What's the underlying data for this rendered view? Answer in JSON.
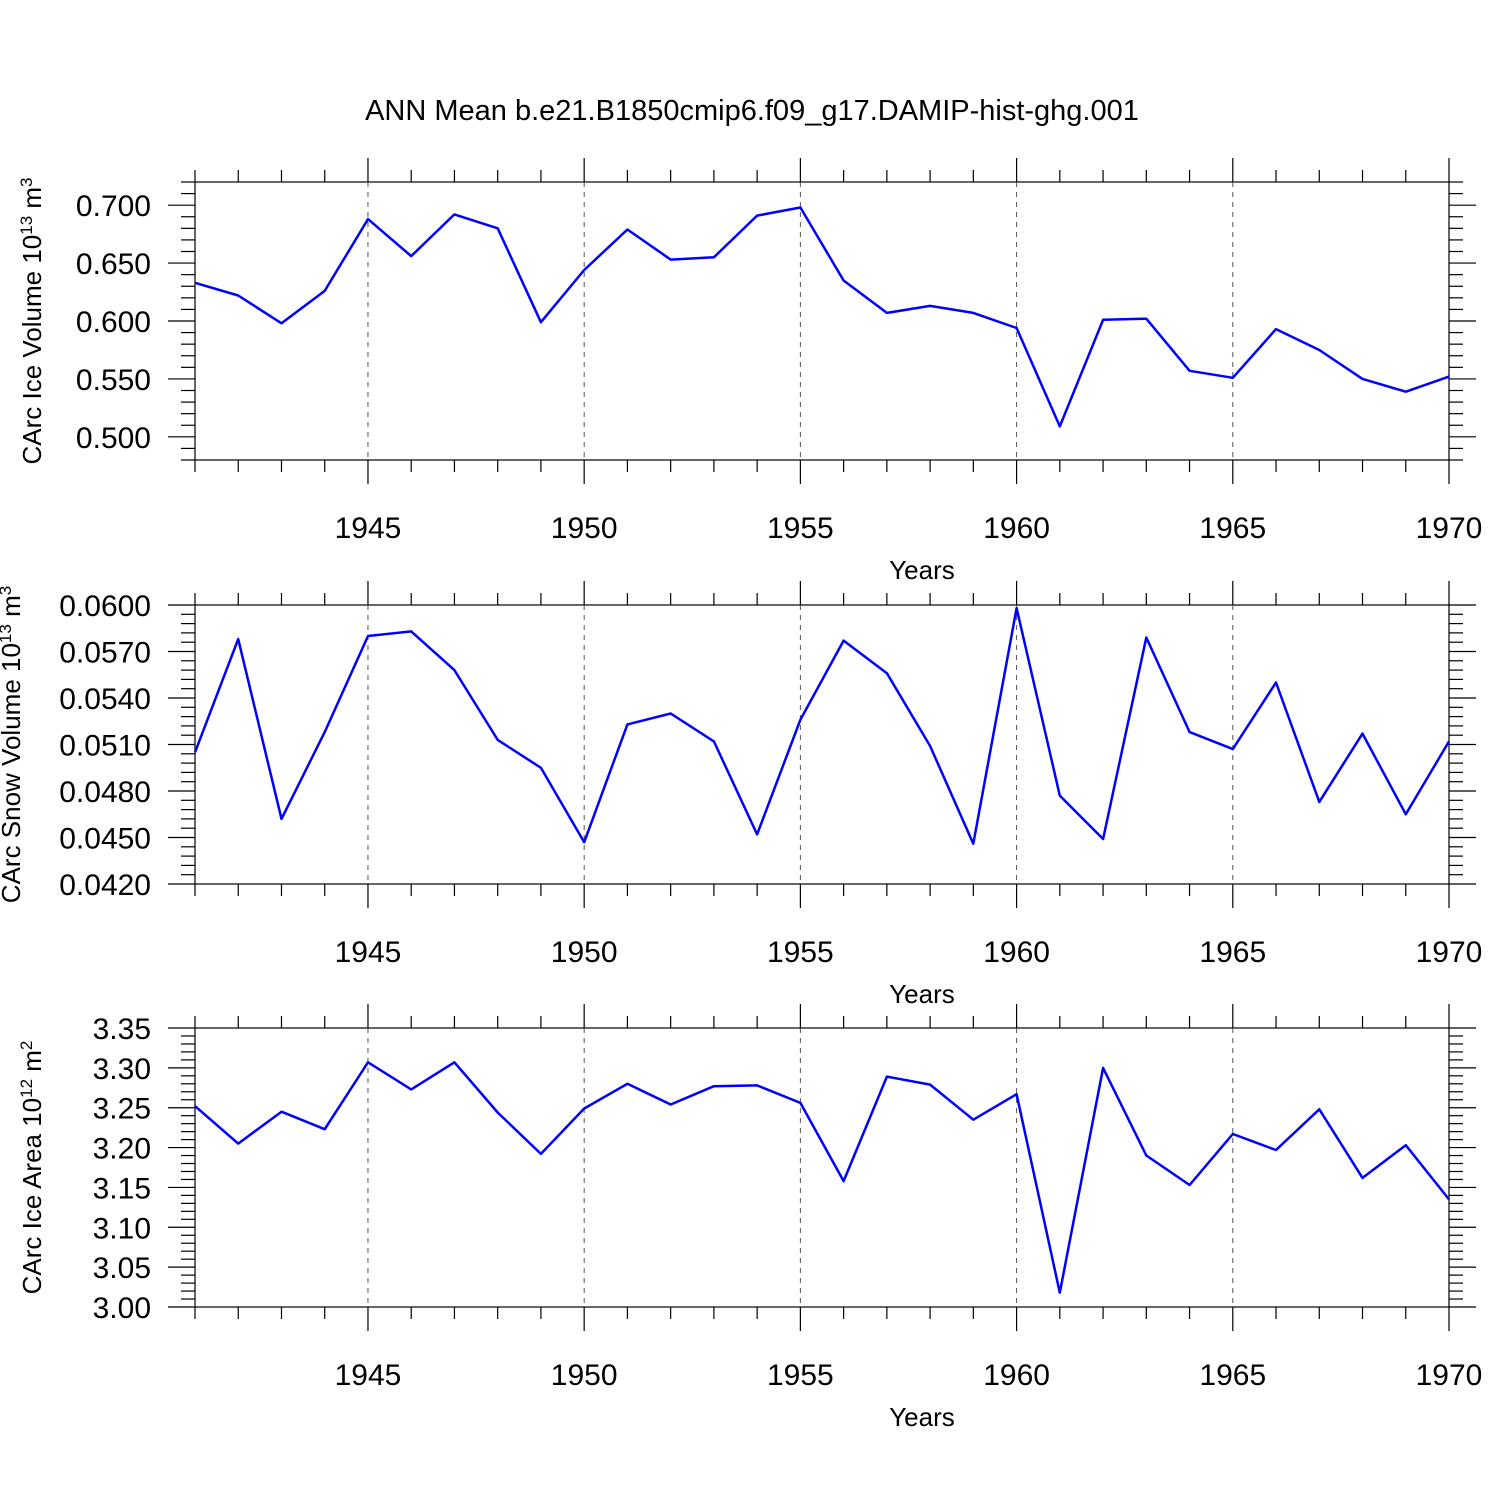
{
  "chart_data": {
    "type": "line",
    "title": "ANN Mean b.e21.B1850cmip6.f09_g17.DAMIP-hist-ghg.001",
    "x": [
      1941,
      1942,
      1943,
      1944,
      1945,
      1946,
      1947,
      1948,
      1949,
      1950,
      1951,
      1952,
      1953,
      1954,
      1955,
      1956,
      1957,
      1958,
      1959,
      1960,
      1961,
      1962,
      1963,
      1964,
      1965,
      1966,
      1967,
      1968,
      1969,
      1970
    ],
    "xlim": [
      1941,
      1970
    ],
    "xticks": [
      1945,
      1950,
      1955,
      1960,
      1965,
      1970
    ],
    "xlabel": "Years",
    "color": "#0000ff",
    "panels": [
      {
        "name": "ice-volume",
        "ylabel_main": "CArc Ice Volume 10",
        "ylabel_exp": "13",
        "ylabel_unit": " m",
        "ylabel_unit_exp": "3",
        "ylim": [
          0.48,
          0.72
        ],
        "yticks": [
          "0.500",
          "0.550",
          "0.600",
          "0.650",
          "0.700"
        ],
        "values": [
          0.633,
          0.622,
          0.598,
          0.626,
          0.688,
          0.656,
          0.692,
          0.68,
          0.599,
          0.644,
          0.679,
          0.653,
          0.655,
          0.691,
          0.698,
          0.635,
          0.607,
          0.613,
          0.607,
          0.594,
          0.509,
          0.601,
          0.602,
          0.557,
          0.551,
          0.593,
          0.575,
          0.55,
          0.539,
          0.552
        ]
      },
      {
        "name": "snow-volume",
        "ylabel_main": "CArc Snow Volume 10",
        "ylabel_exp": "13",
        "ylabel_unit": " m",
        "ylabel_unit_exp": "3",
        "ylim": [
          0.042,
          0.06
        ],
        "yticks": [
          "0.0420",
          "0.0450",
          "0.0480",
          "0.0510",
          "0.0540",
          "0.0570",
          "0.0600"
        ],
        "values": [
          0.0505,
          0.0578,
          0.0462,
          0.0518,
          0.058,
          0.0583,
          0.0558,
          0.0513,
          0.0495,
          0.0447,
          0.0523,
          0.053,
          0.0512,
          0.0452,
          0.0526,
          0.0577,
          0.0556,
          0.0509,
          0.0446,
          0.0598,
          0.0477,
          0.0449,
          0.0579,
          0.0518,
          0.0507,
          0.055,
          0.0473,
          0.0517,
          0.0465,
          0.0512
        ]
      },
      {
        "name": "ice-area",
        "ylabel_main": "CArc Ice Area 10",
        "ylabel_exp": "12",
        "ylabel_unit": " m",
        "ylabel_unit_exp": "2",
        "ylim": [
          3.0,
          3.35
        ],
        "yticks": [
          "3.00",
          "3.05",
          "3.10",
          "3.15",
          "3.20",
          "3.25",
          "3.30",
          "3.35"
        ],
        "values": [
          3.252,
          3.205,
          3.245,
          3.223,
          3.307,
          3.273,
          3.307,
          3.244,
          3.192,
          3.249,
          3.28,
          3.254,
          3.277,
          3.278,
          3.256,
          3.158,
          3.289,
          3.279,
          3.235,
          3.267,
          3.018,
          3.3,
          3.19,
          3.153,
          3.217,
          3.197,
          3.248,
          3.162,
          3.203,
          3.135
        ]
      }
    ]
  }
}
